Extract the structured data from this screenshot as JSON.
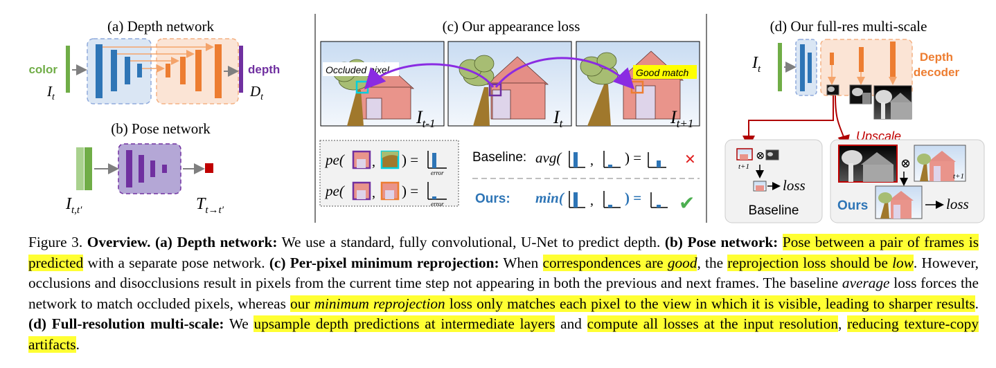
{
  "panels": {
    "a": {
      "title": "(a) Depth network",
      "input_label": "color",
      "input_symbol": "I",
      "input_sub": "t",
      "output_label": "depth",
      "output_symbol": "D",
      "output_sub": "t"
    },
    "b": {
      "title": "(b) Pose network",
      "input_symbol": "I",
      "input_sub": "t,t′",
      "output_symbol": "T",
      "output_sub": "t→t′"
    },
    "c": {
      "title": "(c) Our appearance loss",
      "occluded_label": "Occluded pixel",
      "good_label": "Good match",
      "frame_labels": [
        {
          "base": "I",
          "sub": "t-1"
        },
        {
          "base": "I",
          "sub": "t"
        },
        {
          "base": "I",
          "sub": "t+1"
        }
      ],
      "pe_text": "pe(",
      "error_label": "error",
      "baseline_label": "Baseline:",
      "baseline_func": "avg(",
      "ours_label": "Ours:",
      "ours_func": "min(",
      "cross": "✕",
      "check": "✔"
    },
    "d": {
      "title": "(d) Our full-res multi-scale",
      "input_symbol": "I",
      "input_sub": "t",
      "decoder_label_1": "Depth",
      "decoder_label_2": "decoder",
      "upscale_label": "Upscale",
      "baseline_box_label": "Baseline",
      "ours_box_label": "Ours",
      "loss_label": "loss",
      "sub_t1": "t+1",
      "otimes": "⊗"
    }
  },
  "caption": {
    "figure_label": "Figure 3.",
    "overview": "Overview.",
    "a_head": "(a) Depth network:",
    "a_text": " We use a standard, fully convolutional, U-Net to predict depth. ",
    "b_head": "(b) Pose network:",
    "b_pre": " ",
    "b_hl": "Pose between a pair of frames is predicted",
    "b_text": " with a separate pose network. ",
    "c_head": "(c) Per-pixel minimum reprojection:",
    "c_t1": " When ",
    "c_hl1a": "correspondences are ",
    "c_hl1b": "good",
    "c_t2": ", the ",
    "c_hl2a": "reprojection loss should be ",
    "c_hl2b": "low",
    "c_t3": ". However, occlusions and disocclusions result in pixels from the current time step not appearing in both the previous and next frames. The baseline ",
    "c_avg": "average",
    "c_t4": " loss forces the network to match occluded pixels, whereas ",
    "c_hl3a": "our ",
    "c_hl3b": "minimum reprojection",
    "c_hl3c": " loss only matches each pixel to the view in which it is visible, leading to sharper results",
    "c_t5": ". ",
    "d_head": "(d) Full-resolution multi-scale:",
    "d_t1": " We ",
    "d_hl1": "upsample depth predictions at intermediate layers",
    "d_t2": " and ",
    "d_hl2": "compute all losses at the input resolution",
    "d_t3": ", ",
    "d_hl3": "reducing texture-copy artifacts",
    "d_t4": "."
  }
}
